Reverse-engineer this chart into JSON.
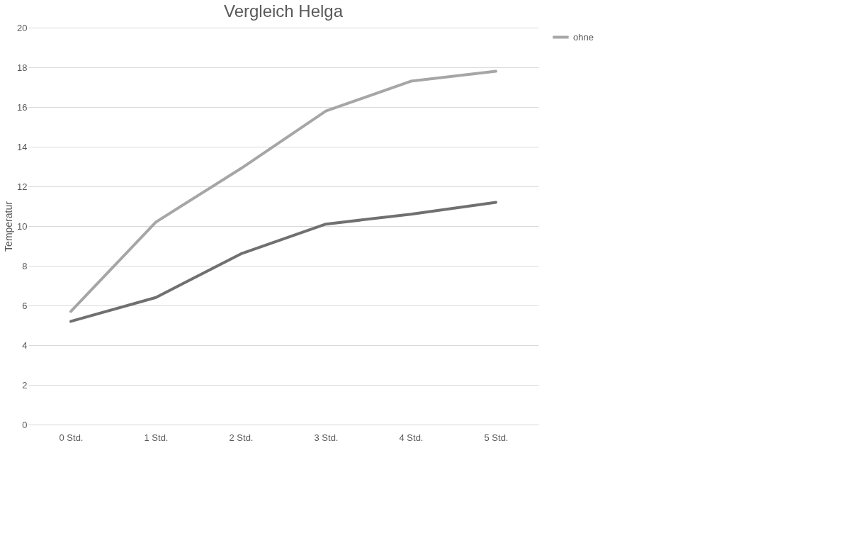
{
  "chart_data": {
    "type": "line",
    "title": "Vergleich Helga",
    "ylabel": "Temperatur",
    "categories": [
      "0 Std.",
      "1 Std.",
      "2 Std.",
      "3 Std.",
      "4 Std.",
      "5 Std."
    ],
    "series": [
      {
        "color": "#707070",
        "values": [
          5.2,
          6.4,
          8.6,
          10.1,
          10.6,
          11.2
        ]
      },
      {
        "name": "ohne",
        "color": "#a6a6a6",
        "values": [
          5.7,
          10.2,
          12.9,
          15.8,
          17.3,
          17.8
        ]
      }
    ],
    "ylim": [
      0,
      20
    ],
    "yticks": [
      0,
      2,
      4,
      6,
      8,
      10,
      12,
      14,
      16,
      18,
      20
    ],
    "grid": "y",
    "legend": "right",
    "marker": "none",
    "line_style": "solid"
  }
}
